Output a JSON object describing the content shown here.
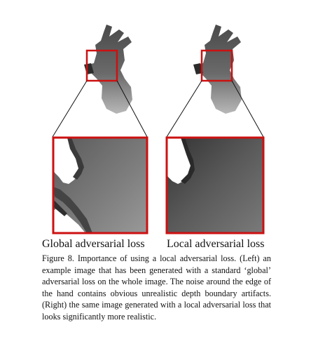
{
  "figure": {
    "left_panel_label": "Global adversarial loss",
    "right_panel_label": "Local adversarial loss",
    "caption_label": "Figure 8.",
    "caption_text": "Importance of using a local adversarial loss. (Left) an example image that has been generated with a standard ‘global’ adversarial loss on the whole image. The noise around the edge of the hand contains obvious unrealistic depth boundary artifacts. (Right) the same image generated with a local adversarial loss that looks significantly more realistic."
  },
  "colors": {
    "highlight_box": "#cc1111",
    "hand_depth_dark": "#3a3a3a",
    "hand_depth_light": "#b5b5b5"
  },
  "icons": {
    "left_hand": "hand-depth-image",
    "right_hand": "hand-depth-image",
    "left_zoom": "zoomed-crop",
    "right_zoom": "zoomed-crop"
  }
}
